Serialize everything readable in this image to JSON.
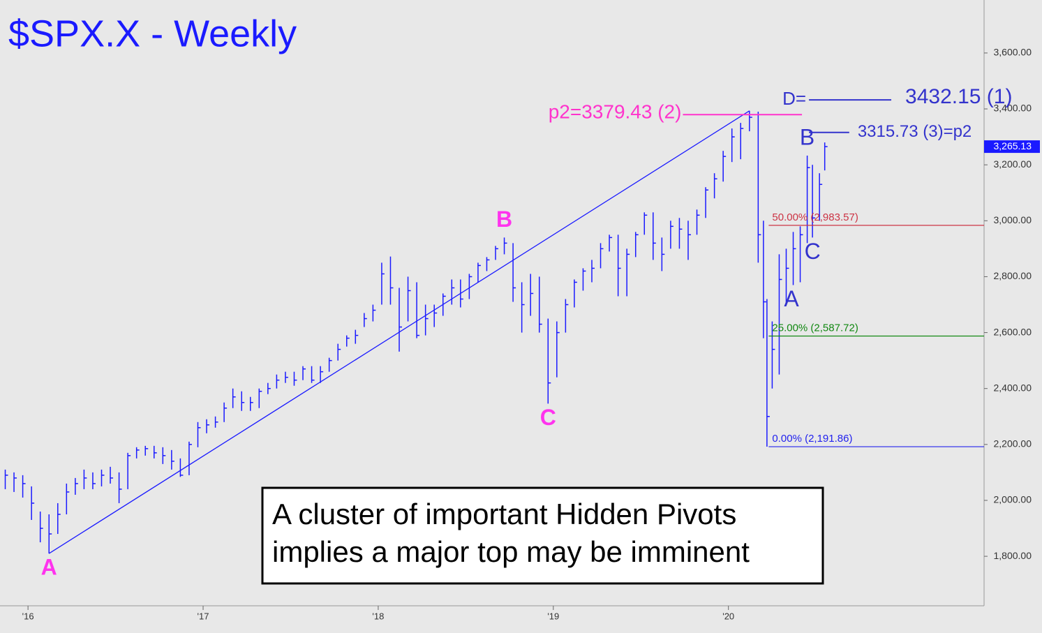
{
  "chart_data": {
    "type": "ohlc",
    "title": "$SPX.X - Weekly",
    "note": [
      "A cluster of important Hidden Pivots",
      "implies a major top may be imminent"
    ],
    "color": "#1a1aff",
    "xlim": [
      2015.86,
      2021.46
    ],
    "ylim": [
      1623,
      3777
    ],
    "xticks": [
      {
        "value": 2016,
        "label": "'16"
      },
      {
        "value": 2017,
        "label": "'17"
      },
      {
        "value": 2018,
        "label": "'18"
      },
      {
        "value": 2019,
        "label": "'19"
      },
      {
        "value": 2020,
        "label": "'20"
      }
    ],
    "yticks": [
      {
        "value": 1800,
        "label": "1,800.00"
      },
      {
        "value": 2000,
        "label": "2,000.00"
      },
      {
        "value": 2200,
        "label": "2,200.00"
      },
      {
        "value": 2400,
        "label": "2,400.00"
      },
      {
        "value": 2600,
        "label": "2,600.00"
      },
      {
        "value": 2800,
        "label": "2,800.00"
      },
      {
        "value": 3000,
        "label": "3,000.00"
      },
      {
        "value": 3200,
        "label": "3,200.00"
      },
      {
        "value": 3400,
        "label": "3,400.00"
      },
      {
        "value": 3600,
        "label": "3,600.00"
      }
    ],
    "x": [
      2015.87,
      2015.92,
      2015.97,
      2016.02,
      2016.07,
      2016.12,
      2016.17,
      2016.22,
      2016.27,
      2016.32,
      2016.37,
      2016.42,
      2016.47,
      2016.52,
      2016.57,
      2016.62,
      2016.67,
      2016.72,
      2016.77,
      2016.82,
      2016.87,
      2016.92,
      2016.97,
      2017.02,
      2017.07,
      2017.12,
      2017.17,
      2017.22,
      2017.27,
      2017.32,
      2017.37,
      2017.42,
      2017.47,
      2017.52,
      2017.57,
      2017.62,
      2017.67,
      2017.72,
      2017.77,
      2017.82,
      2017.87,
      2017.92,
      2017.97,
      2018.02,
      2018.07,
      2018.12,
      2018.17,
      2018.22,
      2018.27,
      2018.32,
      2018.37,
      2018.42,
      2018.47,
      2018.52,
      2018.57,
      2018.62,
      2018.67,
      2018.72,
      2018.77,
      2018.82,
      2018.87,
      2018.92,
      2018.97,
      2019.02,
      2019.07,
      2019.12,
      2019.17,
      2019.22,
      2019.27,
      2019.32,
      2019.37,
      2019.42,
      2019.47,
      2019.52,
      2019.57,
      2019.62,
      2019.67,
      2019.72,
      2019.77,
      2019.82,
      2019.87,
      2019.92,
      2019.97,
      2020.02,
      2020.07,
      2020.12,
      2020.17,
      2020.2,
      2020.22,
      2020.25,
      2020.29,
      2020.33,
      2020.37,
      2020.41,
      2020.45,
      2020.48,
      2020.52,
      2020.55
    ],
    "high": [
      2110,
      2100,
      2090,
      2050,
      1960,
      1950,
      1990,
      2060,
      2080,
      2110,
      2100,
      2110,
      2120,
      2100,
      2170,
      2190,
      2195,
      2195,
      2190,
      2180,
      2150,
      2210,
      2280,
      2290,
      2300,
      2350,
      2400,
      2390,
      2370,
      2400,
      2420,
      2450,
      2460,
      2460,
      2480,
      2480,
      2480,
      2510,
      2560,
      2590,
      2610,
      2670,
      2700,
      2850,
      2872,
      2760,
      2800,
      2780,
      2700,
      2700,
      2740,
      2790,
      2790,
      2810,
      2850,
      2870,
      2910,
      2940,
      2920,
      2780,
      2810,
      2800,
      2650,
      2640,
      2720,
      2790,
      2830,
      2860,
      2920,
      2950,
      2950,
      2900,
      2960,
      3030,
      3030,
      2940,
      3000,
      3010,
      3000,
      3040,
      3120,
      3170,
      3250,
      3330,
      3350,
      3393,
      3390,
      3000,
      2720,
      2640,
      2880,
      2900,
      2960,
      2980,
      3233,
      3200,
      3170,
      3280
    ],
    "low": [
      2040,
      2030,
      2010,
      1930,
      1850,
      1810,
      1880,
      1950,
      2020,
      2040,
      2040,
      2050,
      2060,
      1990,
      2040,
      2150,
      2160,
      2150,
      2130,
      2110,
      2084,
      2090,
      2190,
      2240,
      2260,
      2280,
      2330,
      2320,
      2320,
      2330,
      2380,
      2400,
      2420,
      2410,
      2430,
      2420,
      2420,
      2460,
      2500,
      2550,
      2560,
      2620,
      2640,
      2700,
      2700,
      2532,
      2640,
      2580,
      2590,
      2620,
      2660,
      2700,
      2690,
      2720,
      2780,
      2820,
      2860,
      2880,
      2710,
      2600,
      2660,
      2600,
      2346,
      2440,
      2600,
      2690,
      2750,
      2780,
      2830,
      2890,
      2730,
      2730,
      2870,
      2950,
      2860,
      2820,
      2900,
      2900,
      2860,
      2950,
      3010,
      3080,
      3140,
      3210,
      3220,
      3320,
      2850,
      2580,
      2192,
      2400,
      2450,
      2700,
      2770,
      2780,
      2920,
      2940,
      3000,
      3180
    ],
    "close": [
      2090,
      2080,
      2060,
      1990,
      1900,
      1880,
      1950,
      2030,
      2060,
      2080,
      2060,
      2090,
      2080,
      2040,
      2160,
      2180,
      2185,
      2170,
      2160,
      2140,
      2090,
      2200,
      2260,
      2270,
      2280,
      2330,
      2370,
      2350,
      2350,
      2390,
      2400,
      2430,
      2440,
      2430,
      2470,
      2430,
      2460,
      2500,
      2540,
      2580,
      2590,
      2650,
      2680,
      2810,
      2760,
      2620,
      2750,
      2590,
      2650,
      2670,
      2730,
      2760,
      2720,
      2800,
      2840,
      2860,
      2900,
      2920,
      2760,
      2700,
      2740,
      2630,
      2420,
      2600,
      2700,
      2780,
      2820,
      2830,
      2900,
      2940,
      2830,
      2880,
      2950,
      3020,
      2920,
      2880,
      2980,
      2970,
      2950,
      3020,
      3110,
      3150,
      3230,
      3300,
      3330,
      3370,
      2950,
      2710,
      2300,
      2540,
      2790,
      2830,
      2900,
      2950,
      3190,
      3010,
      3130,
      3265.13
    ],
    "last_price": {
      "value": 3265.13,
      "label": "3,265.13"
    },
    "trendline": {
      "x": [
        2016.12,
        2020.12
      ],
      "y": [
        1810,
        3393
      ],
      "color": "#1a1aff"
    },
    "levels": [
      {
        "prefix": "D=",
        "label": "3432.15 (1)",
        "value": 3432.15,
        "x_start": 2020.46,
        "x_end": 2020.93,
        "color": "#3333cc",
        "label_side": "right-big"
      },
      {
        "label": "p2=3379.43 (2)",
        "value": 3379.43,
        "x_start": 2019.74,
        "x_end": 2020.42,
        "color": "#ff33cc",
        "label_side": "left"
      },
      {
        "label": "3315.73 (3)=p2",
        "value": 3315.73,
        "x_start": 2020.46,
        "x_end": 2020.69,
        "color": "#3333cc",
        "label_side": "right"
      },
      {
        "label": "50.00% (2,983.57)",
        "value": 2983.57,
        "x_start": 2020.23,
        "x_end": 2021.46,
        "color": "#cc3344",
        "label_side": "above"
      },
      {
        "label": "25.00% (2,587.72)",
        "value": 2587.72,
        "x_start": 2020.23,
        "x_end": 2021.46,
        "color": "#118811",
        "label_side": "above"
      },
      {
        "label": "0.00% (2,191.86)",
        "value": 2191.86,
        "x_start": 2020.23,
        "x_end": 2021.46,
        "color": "#2222ee",
        "label_side": "above"
      }
    ],
    "pivots": [
      {
        "label": "A",
        "x": 2016.12,
        "y": 1810,
        "color": "#ff33ee",
        "side": "below"
      },
      {
        "label": "B",
        "x": 2018.72,
        "y": 2940,
        "color": "#ff33ee",
        "side": "above"
      },
      {
        "label": "C",
        "x": 2018.97,
        "y": 2346,
        "color": "#ff33ee",
        "side": "below"
      },
      {
        "label": "A",
        "x": 2020.36,
        "y": 2770,
        "color": "#3333cc",
        "side": "below"
      },
      {
        "label": "B",
        "x": 2020.45,
        "y": 3233,
        "color": "#3333cc",
        "side": "above"
      },
      {
        "label": "C",
        "x": 2020.48,
        "y": 2940,
        "color": "#3333cc",
        "side": "below"
      }
    ]
  }
}
